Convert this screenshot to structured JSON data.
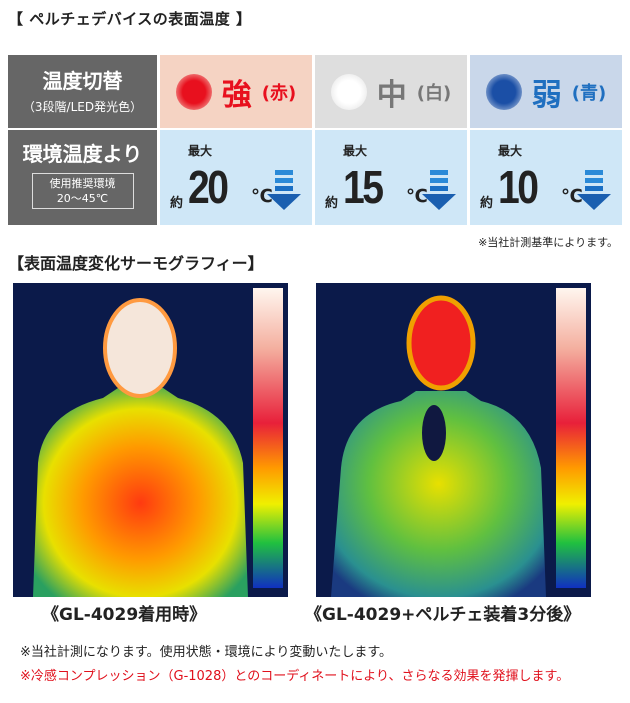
{
  "device_section": {
    "title": "【 ペルチェデバイスの表面温度 】",
    "row1_label": "温度切替",
    "row1_sub": "（3段階/LED発光色）",
    "row2_label": "環境温度より",
    "env_box_line1": "使用推奨環境",
    "env_box_line2": "20〜45℃",
    "modes": [
      {
        "name": "強",
        "color_label": "(赤)",
        "led_color": "#e8101e",
        "text_color": "#e8101e",
        "bg": "#f5d3c3",
        "max_label": "最大",
        "approx": "約",
        "temp": "20",
        "unit": "℃"
      },
      {
        "name": "中",
        "color_label": "(白)",
        "led_color": "#ffffff",
        "text_color": "#777777",
        "bg": "#dedede",
        "max_label": "最大",
        "approx": "約",
        "temp": "15",
        "unit": "℃"
      },
      {
        "name": "弱",
        "color_label": "(青)",
        "led_color": "#1b4fa6",
        "text_color": "#1f6fc0",
        "bg": "#c9d7ea",
        "max_label": "最大",
        "approx": "約",
        "temp": "10",
        "unit": "℃"
      }
    ],
    "note": "※当社計測基準によります。"
  },
  "thermo_section": {
    "title": "【表面温度変化サーモグラフィー】",
    "captions": [
      "《GL-4029着用時》",
      "《GL-4029+ペルチェ装着3分後》"
    ]
  },
  "notes": [
    "※当社計測になります。使用状態・環境により変動いたします。",
    "※冷感コンプレッション（G-1028）とのコーディネートにより、さらなる効果を発揮します。"
  ],
  "colors": {
    "note_red": "#e0101c",
    "label_bg": "#666666",
    "temp_bg": "#cfe7f7",
    "arrow_blue": "#1a6fc4"
  }
}
